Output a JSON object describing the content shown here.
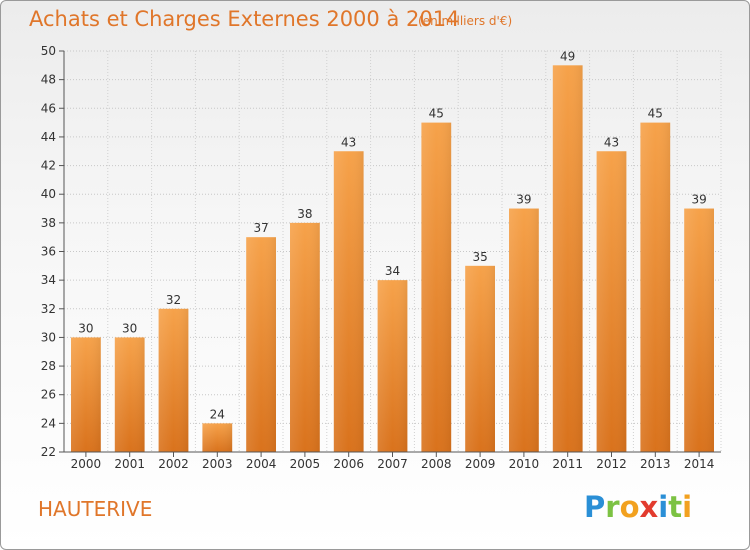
{
  "header": {
    "title": "Achats et Charges Externes 2000 à 2014",
    "subtitle": "(en milliers d'€)"
  },
  "footer": {
    "location": "HAUTERIVE",
    "logo": {
      "letters": [
        {
          "char": "P",
          "color": "#2a8fd6"
        },
        {
          "char": "r",
          "color": "#7cc243"
        },
        {
          "char": "o",
          "color": "#f2a11f"
        },
        {
          "char": "x",
          "color": "#e23b2e"
        },
        {
          "char": "i",
          "color": "#2a8fd6"
        },
        {
          "char": "t",
          "color": "#7cc243"
        },
        {
          "char": "i",
          "color": "#f2a11f"
        }
      ]
    }
  },
  "chart_data": {
    "type": "bar",
    "title": "Achats et Charges Externes 2000 à 2014",
    "subtitle": "(en milliers d'€)",
    "categories": [
      "2000",
      "2001",
      "2002",
      "2003",
      "2004",
      "2005",
      "2006",
      "2007",
      "2008",
      "2009",
      "2010",
      "2011",
      "2012",
      "2013",
      "2014"
    ],
    "values": [
      30,
      30,
      32,
      24,
      37,
      38,
      43,
      34,
      45,
      35,
      39,
      49,
      43,
      45,
      39
    ],
    "ylim": [
      22,
      50
    ],
    "yticks": [
      22,
      24,
      26,
      28,
      30,
      32,
      34,
      36,
      38,
      40,
      42,
      44,
      46,
      48,
      50
    ],
    "grid": true,
    "bar_color": "#f0922f",
    "xlabel": "",
    "ylabel": ""
  }
}
